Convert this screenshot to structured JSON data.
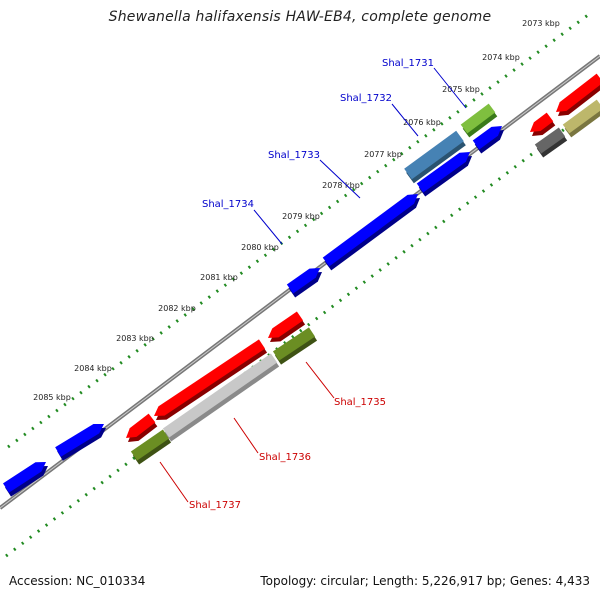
{
  "title": "Shewanella halifaxensis HAW-EB4, complete genome",
  "footer": {
    "accession": "Accession: NC_010334",
    "topology": "Topology: circular; Length: 5,226,917 bp; Genes: 4,433"
  },
  "ticks": [
    "2073 kbp",
    "2074 kbp",
    "2075 kbp",
    "2076 kbp",
    "2077 kbp",
    "2078 kbp",
    "2079 kbp",
    "2080 kbp",
    "2081 kbp",
    "2082 kbp",
    "2083 kbp",
    "2084 kbp",
    "2085 kbp"
  ],
  "genes": [
    {
      "name": "Shal_1731",
      "strand": "forward",
      "color": "#0000cc"
    },
    {
      "name": "Shal_1732",
      "strand": "forward",
      "color": "#0000cc"
    },
    {
      "name": "Shal_1733",
      "strand": "forward",
      "color": "#0000cc"
    },
    {
      "name": "Shal_1734",
      "strand": "forward",
      "color": "#0000cc"
    },
    {
      "name": "Shal_1735",
      "strand": "reverse",
      "color": "#cc0000"
    },
    {
      "name": "Shal_1736",
      "strand": "reverse",
      "color": "#cc0000"
    },
    {
      "name": "Shal_1737",
      "strand": "reverse",
      "color": "#cc0000"
    }
  ],
  "colors": {
    "forward_cds": "#0000ff",
    "reverse_cds": "#ff0000",
    "backbone": "#888888",
    "tick_marks": "#228b22",
    "green_feature": "#7fbf3f",
    "olive_feature": "#6b8e23",
    "steelblue_feature": "#4682b4",
    "grey_feature": "#c0c0c0",
    "khaki_feature": "#bdb76b",
    "dark_grey_feature": "#666666"
  }
}
